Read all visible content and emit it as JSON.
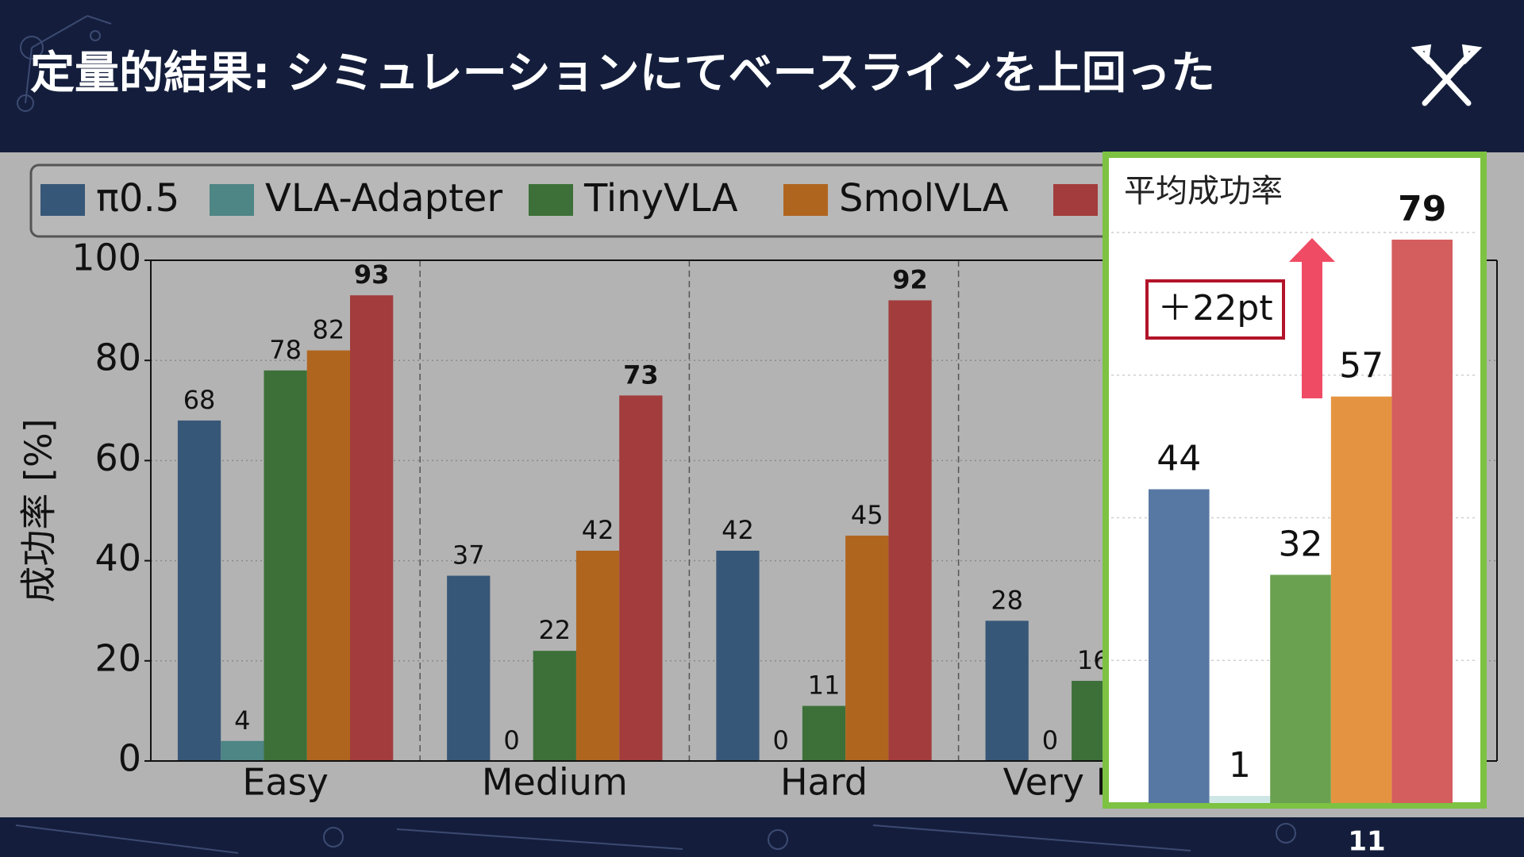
{
  "title": "定量的結果: シミュレーションにてベースラインを上回った",
  "page_number": "11",
  "chart_data": [
    {
      "type": "bar",
      "ylabel": "成功率 [%]",
      "categories": [
        "Easy",
        "Medium",
        "Hard",
        "Very Hard",
        null
      ],
      "series": [
        {
          "name": "π0.5",
          "color": "#375778",
          "values": [
            68,
            37,
            42,
            28,
            null
          ]
        },
        {
          "name": "VLA-Adapter",
          "color": "#4e8585",
          "values": [
            4,
            0,
            0,
            0,
            null
          ]
        },
        {
          "name": "TinyVLA",
          "color": "#3c7038",
          "values": [
            78,
            22,
            11,
            16,
            null
          ]
        },
        {
          "name": "SmolVLA",
          "color": "#b0651f",
          "values": [
            82,
            42,
            45,
            null,
            null
          ]
        },
        {
          "name": null,
          "color": "#a33c3c",
          "values": [
            93,
            73,
            92,
            null,
            null
          ]
        }
      ],
      "ylim": [
        0,
        100
      ],
      "yticks": [
        0,
        20,
        40,
        60,
        80,
        100
      ],
      "grid": true,
      "legend": "top"
    },
    {
      "type": "bar",
      "title": "平均成功率",
      "values": [
        44,
        1,
        32,
        57,
        79
      ],
      "colors": [
        "#5878a4",
        "#cfe6e6",
        "#6aa150",
        "#e49440",
        "#d45d5d"
      ],
      "annotation": "＋22pt",
      "ylim": [
        0,
        80
      ],
      "yticks": [
        20,
        40,
        60,
        80
      ],
      "grid": true
    }
  ]
}
